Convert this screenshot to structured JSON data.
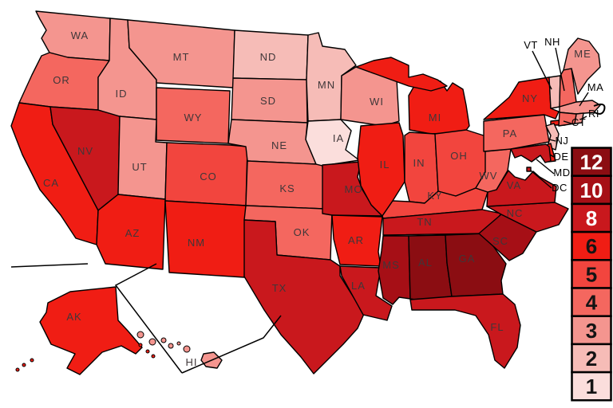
{
  "legend": {
    "entries": [
      {
        "value": "12",
        "color": "#8b0d12",
        "text_color": "#ffffff"
      },
      {
        "value": "10",
        "color": "#a60f16",
        "text_color": "#ffffff"
      },
      {
        "value": "8",
        "color": "#c9181d",
        "text_color": "#ffffff"
      },
      {
        "value": "6",
        "color": "#f01d14",
        "text_color": "#141414"
      },
      {
        "value": "5",
        "color": "#f2453e",
        "text_color": "#141414"
      },
      {
        "value": "4",
        "color": "#f4675f",
        "text_color": "#141414"
      },
      {
        "value": "3",
        "color": "#f4958f",
        "text_color": "#141414"
      },
      {
        "value": "2",
        "color": "#f6bcb7",
        "text_color": "#141414"
      },
      {
        "value": "1",
        "color": "#fbdedc",
        "text_color": "#141414"
      }
    ]
  },
  "states": [
    {
      "abbr": "WA",
      "value": "3"
    },
    {
      "abbr": "OR",
      "value": "4"
    },
    {
      "abbr": "CA",
      "value": "6"
    },
    {
      "abbr": "NV",
      "value": "8"
    },
    {
      "abbr": "ID",
      "value": "3"
    },
    {
      "abbr": "MT",
      "value": "3"
    },
    {
      "abbr": "WY",
      "value": "4"
    },
    {
      "abbr": "UT",
      "value": "3"
    },
    {
      "abbr": "CO",
      "value": "5"
    },
    {
      "abbr": "AZ",
      "value": "6"
    },
    {
      "abbr": "NM",
      "value": "6"
    },
    {
      "abbr": "ND",
      "value": "2"
    },
    {
      "abbr": "SD",
      "value": "3"
    },
    {
      "abbr": "NE",
      "value": "3"
    },
    {
      "abbr": "KS",
      "value": "4"
    },
    {
      "abbr": "OK",
      "value": "4"
    },
    {
      "abbr": "TX",
      "value": "8"
    },
    {
      "abbr": "MN",
      "value": "2"
    },
    {
      "abbr": "IA",
      "value": "1"
    },
    {
      "abbr": "MO",
      "value": "8"
    },
    {
      "abbr": "AR",
      "value": "6"
    },
    {
      "abbr": "LA",
      "value": "8"
    },
    {
      "abbr": "WI",
      "value": "3"
    },
    {
      "abbr": "IL",
      "value": "6"
    },
    {
      "abbr": "MI",
      "value": "6"
    },
    {
      "abbr": "IN",
      "value": "5"
    },
    {
      "abbr": "OH",
      "value": "5"
    },
    {
      "abbr": "KY",
      "value": "5"
    },
    {
      "abbr": "TN",
      "value": "8"
    },
    {
      "abbr": "MS",
      "value": "10"
    },
    {
      "abbr": "AL",
      "value": "12"
    },
    {
      "abbr": "GA",
      "value": "12"
    },
    {
      "abbr": "FL",
      "value": "8"
    },
    {
      "abbr": "SC",
      "value": "10"
    },
    {
      "abbr": "NC",
      "value": "8"
    },
    {
      "abbr": "VA",
      "value": "8"
    },
    {
      "abbr": "WV",
      "value": "4"
    },
    {
      "abbr": "PA",
      "value": "4"
    },
    {
      "abbr": "NY",
      "value": "6"
    },
    {
      "abbr": "ME",
      "value": "3"
    },
    {
      "abbr": "VT",
      "value": "2"
    },
    {
      "abbr": "NH",
      "value": "4"
    },
    {
      "abbr": "MA",
      "value": "3"
    },
    {
      "abbr": "RI",
      "value": "3"
    },
    {
      "abbr": "CT",
      "value": "4"
    },
    {
      "abbr": "NJ",
      "value": "2"
    },
    {
      "abbr": "DE",
      "value": "6"
    },
    {
      "abbr": "MD",
      "value": "8"
    },
    {
      "abbr": "DC",
      "value": "8"
    },
    {
      "abbr": "AK",
      "value": "6"
    },
    {
      "abbr": "HI",
      "value": "3"
    }
  ]
}
